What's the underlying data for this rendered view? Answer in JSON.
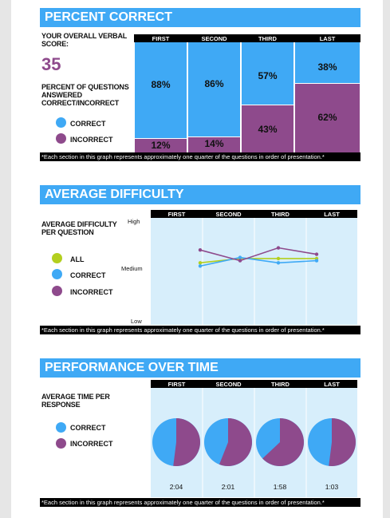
{
  "colors": {
    "correct": "#3fa9f5",
    "incorrect": "#8e4a8c",
    "all": "#b3cf1f",
    "panel": "#d7eefb"
  },
  "sections": [
    "FIRST",
    "SECOND",
    "THIRD",
    "LAST"
  ],
  "note": "*Each section in this graph represents approximately one quarter of the questions in order of presentation.*",
  "percent": {
    "title": "PERCENT CORRECT",
    "score_label": "YOUR OVERALL VERBAL SCORE:",
    "score": "35",
    "pct_label": "PERCENT OF QUESTIONS ANSWERED CORRECT/INCORRECT",
    "legend": {
      "correct": "CORRECT",
      "incorrect": "INCORRECT"
    }
  },
  "difficulty": {
    "title": "AVERAGE DIFFICULTY",
    "side_label": "AVERAGE DIFFICULTY PER QUESTION",
    "legend": {
      "all": "ALL",
      "correct": "CORRECT",
      "incorrect": "INCORRECT"
    },
    "y_ticks": {
      "high": "High",
      "medium": "Medium",
      "low": "Low"
    }
  },
  "time": {
    "title": "PERFORMANCE OVER TIME",
    "side_label": "AVERAGE TIME PER RESPONSE",
    "legend": {
      "correct": "CORRECT",
      "incorrect": "INCORRECT"
    }
  },
  "chart_data": [
    {
      "type": "bar",
      "stacked": true,
      "categories": [
        "FIRST",
        "SECOND",
        "THIRD",
        "LAST"
      ],
      "series": [
        {
          "name": "CORRECT",
          "values": [
            88,
            86,
            57,
            38
          ],
          "labels": [
            "88%",
            "86%",
            "57%",
            "38%"
          ]
        },
        {
          "name": "INCORRECT",
          "values": [
            12,
            14,
            43,
            62
          ],
          "labels": [
            "12%",
            "14%",
            "43%",
            "62%"
          ]
        }
      ],
      "ylim": [
        0,
        100
      ]
    },
    {
      "type": "line",
      "categories": [
        "FIRST",
        "SECOND",
        "THIRD",
        "LAST"
      ],
      "series": [
        {
          "name": "ALL",
          "values": [
            0.58,
            0.62,
            0.62,
            0.62
          ]
        },
        {
          "name": "CORRECT",
          "values": [
            0.55,
            0.63,
            0.58,
            0.6
          ]
        },
        {
          "name": "INCORRECT",
          "values": [
            0.7,
            0.6,
            0.72,
            0.66
          ]
        }
      ],
      "ylim": [
        0,
        1
      ],
      "yticks": [
        "Low",
        "Medium",
        "High"
      ]
    },
    {
      "type": "pie",
      "categories": [
        "FIRST",
        "SECOND",
        "THIRD",
        "LAST"
      ],
      "series": [
        {
          "name": "CORRECT",
          "values": [
            48,
            44,
            37,
            48
          ]
        },
        {
          "name": "INCORRECT",
          "values": [
            52,
            56,
            63,
            52
          ]
        }
      ],
      "times": [
        "2:04",
        "2:01",
        "1:58",
        "1:03"
      ]
    }
  ]
}
